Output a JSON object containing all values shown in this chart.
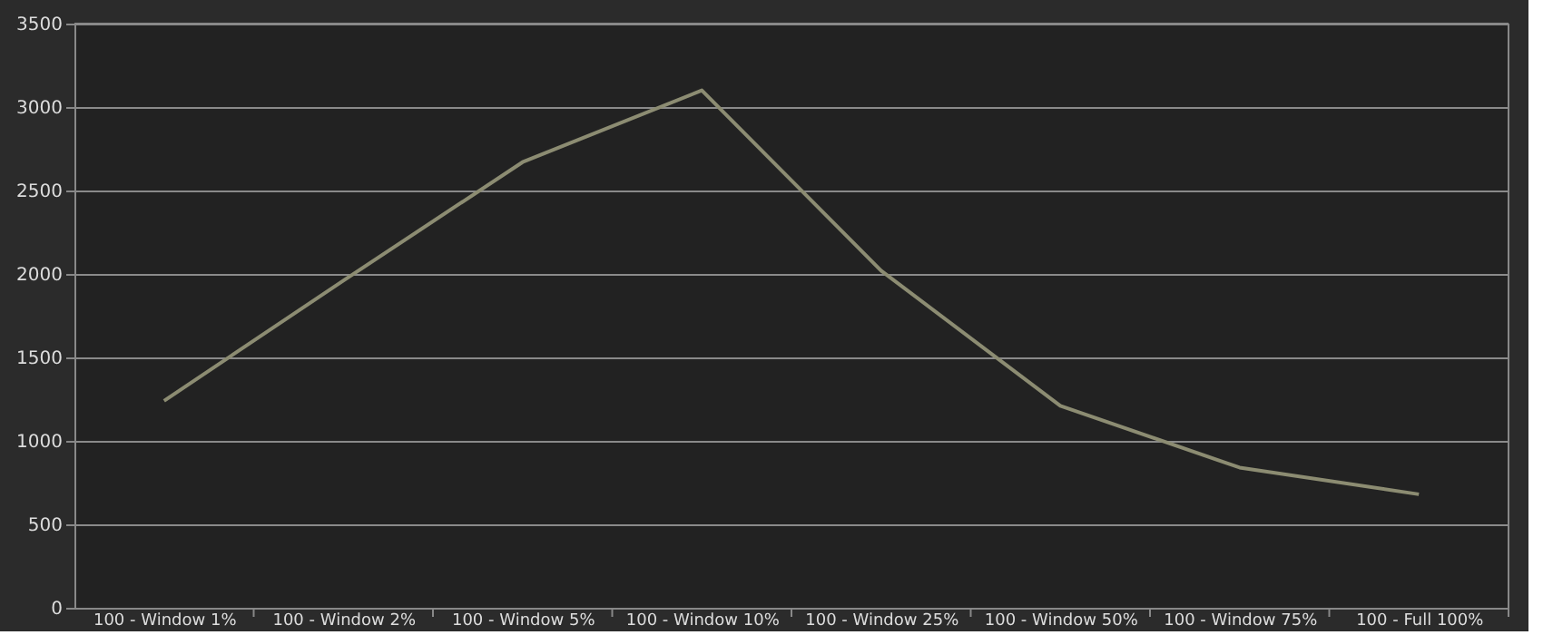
{
  "chart_data": {
    "type": "line",
    "categories": [
      "100 - Window  1%",
      "100 - Window  2%",
      "100 - Window  5%",
      "100 - Window 10%",
      "100 - Window 25%",
      "100 - Window 50%",
      "100 - Window 75%",
      "100 - Full  100%"
    ],
    "series": [
      {
        "color": "#8c8c72",
        "values": [
          1240,
          1960,
          2670,
          3100,
          2020,
          1210,
          840,
          680
        ]
      }
    ],
    "ylim": [
      0,
      3500
    ],
    "yticks": [
      0,
      500,
      1000,
      1500,
      2000,
      2500,
      3000,
      3500
    ],
    "grid": "y",
    "marker": "none",
    "line_style": "solid"
  }
}
